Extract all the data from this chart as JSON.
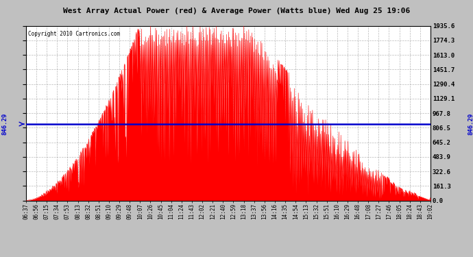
{
  "title": "West Array Actual Power (red) & Average Power (Watts blue) Wed Aug 25 19:06",
  "copyright": "Copyright 2010 Cartronics.com",
  "avg_power": 846.29,
  "y_max": 1935.6,
  "y_min": 0.0,
  "y_ticks": [
    0.0,
    161.3,
    322.6,
    483.9,
    645.2,
    806.5,
    967.8,
    1129.1,
    1290.4,
    1451.7,
    1613.0,
    1774.3,
    1935.6
  ],
  "fill_color": "#FF0000",
  "line_color": "#0000CC",
  "avg_label": "846.29",
  "plot_bg": "#FFFFFF",
  "fig_bg": "#C0C0C0",
  "x_labels": [
    "06:37",
    "06:56",
    "07:15",
    "07:34",
    "07:53",
    "08:13",
    "08:32",
    "08:51",
    "09:10",
    "09:29",
    "09:48",
    "10:07",
    "10:26",
    "10:45",
    "11:04",
    "11:24",
    "11:43",
    "12:02",
    "12:21",
    "12:40",
    "12:59",
    "13:18",
    "13:37",
    "13:56",
    "14:16",
    "14:35",
    "14:54",
    "15:13",
    "15:32",
    "15:51",
    "16:10",
    "16:29",
    "16:48",
    "17:08",
    "17:27",
    "17:46",
    "18:05",
    "18:24",
    "18:43",
    "19:02"
  ]
}
